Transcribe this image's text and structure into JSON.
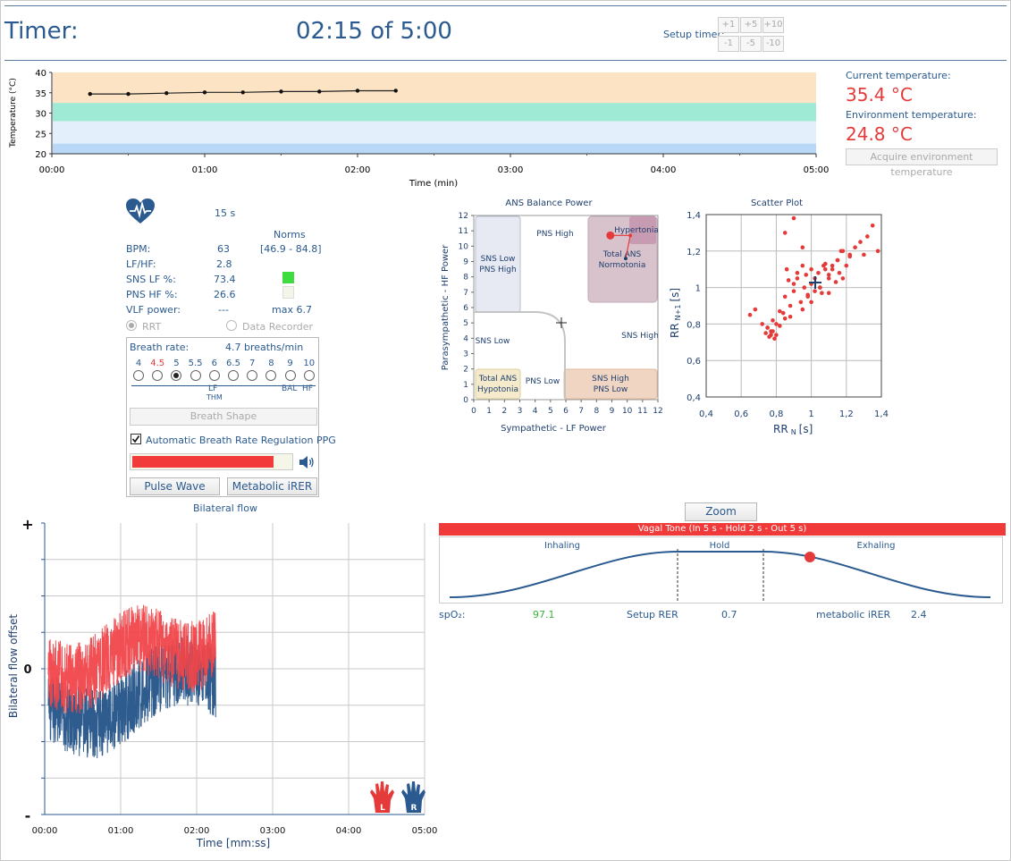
{
  "header": {
    "timer_label": "Timer:",
    "timer_value": "02:15 of 5:00",
    "setup_label": "Setup timer:",
    "timer_buttons_top": [
      "+1",
      "+5",
      "+10"
    ],
    "timer_buttons_bottom": [
      "-1",
      "-5",
      "-10"
    ]
  },
  "temperature": {
    "current_label": "Current temperature:",
    "current_value": "35.4 °C",
    "environment_label": "Environment temperature:",
    "environment_value": "24.8 °C",
    "acquire_button": "Acquire environment temperature"
  },
  "temp_chart": {
    "ylabel": "Temperature (°C)",
    "xlabel": "Time (min)",
    "y_ticks": [
      "40",
      "35",
      "30",
      "25",
      "20"
    ],
    "x_ticks": [
      "00:00",
      "01:00",
      "02:00",
      "03:00",
      "04:00",
      "05:00"
    ],
    "band_colors": [
      "#fbe3c4",
      "#9eead4",
      "#e3effb",
      "#b9d8f7"
    ]
  },
  "chart_data": [
    {
      "type": "line",
      "title": "",
      "xlabel": "Time (min)",
      "ylabel": "Temperature (°C)",
      "xlim": [
        0,
        5
      ],
      "ylim": [
        20,
        40
      ],
      "x": [
        0.25,
        0.5,
        0.75,
        1.0,
        1.25,
        1.5,
        1.75,
        2.0,
        2.25
      ],
      "y": [
        34.7,
        34.7,
        34.9,
        35.1,
        35.1,
        35.3,
        35.3,
        35.5,
        35.5
      ]
    },
    {
      "type": "scatter",
      "title": "ANS Balance Power",
      "xlabel": "Sympathetic - LF Power",
      "ylabel": "Parasympathetic - HF Power",
      "xlim": [
        0,
        12
      ],
      "ylim": [
        0,
        12
      ],
      "x": [
        8.9,
        10.2,
        9.9
      ],
      "y": [
        10.7,
        10.7,
        9.2
      ]
    },
    {
      "type": "scatter",
      "title": "Scatter Plot",
      "xlabel": "RR N [s]",
      "ylabel": "RR N+1 [s]",
      "xlim": [
        0.4,
        1.4
      ],
      "ylim": [
        0.4,
        1.4
      ],
      "x": [
        0.65,
        0.68,
        0.72,
        0.74,
        0.75,
        0.76,
        0.77,
        0.78,
        0.79,
        0.8,
        0.82,
        0.84,
        0.85,
        0.86,
        0.88,
        0.9,
        0.92,
        0.94,
        0.95,
        0.96,
        0.98,
        1.0,
        1.02,
        1.04,
        1.05,
        1.06,
        1.08,
        1.1,
        1.12,
        1.14,
        1.15,
        1.16,
        1.18,
        1.2,
        1.22,
        1.25,
        1.28,
        1.3,
        1.32,
        1.35,
        1.38,
        0.75,
        0.8,
        0.85,
        0.9,
        0.95,
        1.0,
        1.05,
        1.1,
        1.15,
        0.78,
        0.88,
        0.98,
        1.08,
        1.18,
        0.82,
        0.92,
        1.02,
        1.12,
        1.22,
        0.77,
        0.87,
        0.97,
        1.07,
        1.17,
        0.9,
        0.85,
        0.95,
        1.0,
        1.1
      ],
      "y": [
        0.85,
        0.88,
        0.8,
        0.75,
        0.78,
        0.73,
        0.76,
        0.82,
        0.72,
        0.74,
        0.79,
        0.86,
        0.95,
        1.1,
        0.9,
        0.98,
        1.05,
        0.92,
        1.12,
        1.0,
        0.96,
        1.02,
        1.05,
        1.08,
        1.0,
        0.97,
        1.1,
        1.05,
        1.12,
        1.03,
        1.15,
        1.08,
        1.2,
        1.12,
        1.18,
        1.22,
        1.25,
        1.18,
        1.28,
        1.34,
        1.2,
        0.78,
        0.8,
        0.83,
        1.02,
        0.88,
        0.92,
        1.0,
        1.07,
        1.15,
        0.76,
        0.84,
        0.95,
        1.13,
        1.05,
        0.87,
        1.08,
        0.98,
        1.1,
        1.17,
        0.74,
        1.04,
        1.07,
        1.12,
        1.2,
        1.38,
        1.3,
        1.22,
        1.1,
        0.97
      ]
    }
  ],
  "hrv": {
    "window": "15 s",
    "norms_title": "Norms",
    "rows": [
      {
        "label": "BPM:",
        "value": "63",
        "norm": "[46.9 - 84.8]"
      },
      {
        "label": "LF/HF:",
        "value": "2.8",
        "norm": ""
      },
      {
        "label": "SNS LF %:",
        "value": "73.4",
        "norm": ""
      },
      {
        "label": "PNS HF %:",
        "value": "26.6",
        "norm": ""
      },
      {
        "label": "VLF power:",
        "value": "---",
        "norm": "max 6.7"
      }
    ],
    "sns_color": "#3fdc3f",
    "pns_color": "#f4f4e9",
    "radio_rrt": "RRT",
    "radio_recorder": "Data Recorder"
  },
  "breath": {
    "label": "Breath rate:",
    "value": "4.7 breaths/min",
    "options": [
      "4",
      "4.5",
      "5",
      "5.5",
      "6",
      "6.5",
      "7",
      "8",
      "9",
      "10"
    ],
    "highlight_option": "4.5",
    "selected_option": "5",
    "bands": [
      "LF",
      "THM",
      "BAL",
      "HF"
    ],
    "breath_shape_button": "Breath Shape",
    "auto_regulation": "Automatic Breath Rate Regulation PPG",
    "level_fraction": 0.88,
    "pulse_wave_button": "Pulse Wave",
    "metabolic_button": "Metabolic iRER"
  },
  "ans": {
    "title": "ANS Balance Power",
    "xlabel": "Sympathetic - LF Power",
    "ylabel": "Parasympathetic - HF Power",
    "ticks": [
      "0",
      "1",
      "2",
      "3",
      "4",
      "5",
      "6",
      "7",
      "8",
      "9",
      "10",
      "11",
      "12"
    ],
    "regions": {
      "sns_low_pns_high": "SNS Low PNS High",
      "pns_high": "PNS High",
      "hypertonia": "Hypertonia",
      "total_ans_normotonia": "Total ANS Normotonia",
      "sns_low": "SNS Low",
      "sns_high": "SNS High",
      "total_ans_hypotonia": "Total ANS Hypotonia",
      "pns_low": "PNS Low",
      "sns_high_pns_low": "SNS High PNS Low"
    }
  },
  "scatter": {
    "title": "Scatter Plot",
    "xlabel_main": "RR",
    "xlabel_sub": "N",
    "xlabel_unit": "[s]",
    "ylabel_main": "RR",
    "ylabel_sub": "N+1",
    "ylabel_unit": "[s]",
    "ticks": [
      "0,4",
      "0,6",
      "0,8",
      "1",
      "1,2",
      "1,4"
    ]
  },
  "bilateral": {
    "title": "Bilateral flow",
    "ylabel": "Bilateral flow offset",
    "xlabel": "Time [mm:ss]",
    "x_ticks": [
      "00:00",
      "01:00",
      "02:00",
      "03:00",
      "04:00",
      "05:00"
    ],
    "plus": "+",
    "minus": "-",
    "zero": "0",
    "left_hand": "L",
    "right_hand": "R"
  },
  "vagal": {
    "zoom_button": "Zoom",
    "banner": "Vagal Tone (In 5 s - Hold 2 s - Out 5 s)",
    "inhaling": "Inhaling",
    "hold": "Hold",
    "exhaling": "Exhaling",
    "spo2_label": "spO₂:",
    "spo2_value": "97.1",
    "setup_rer_label": "Setup RER",
    "setup_rer_value": "0.7",
    "metabolic_label": "metabolic iRER",
    "metabolic_value": "2.4"
  }
}
